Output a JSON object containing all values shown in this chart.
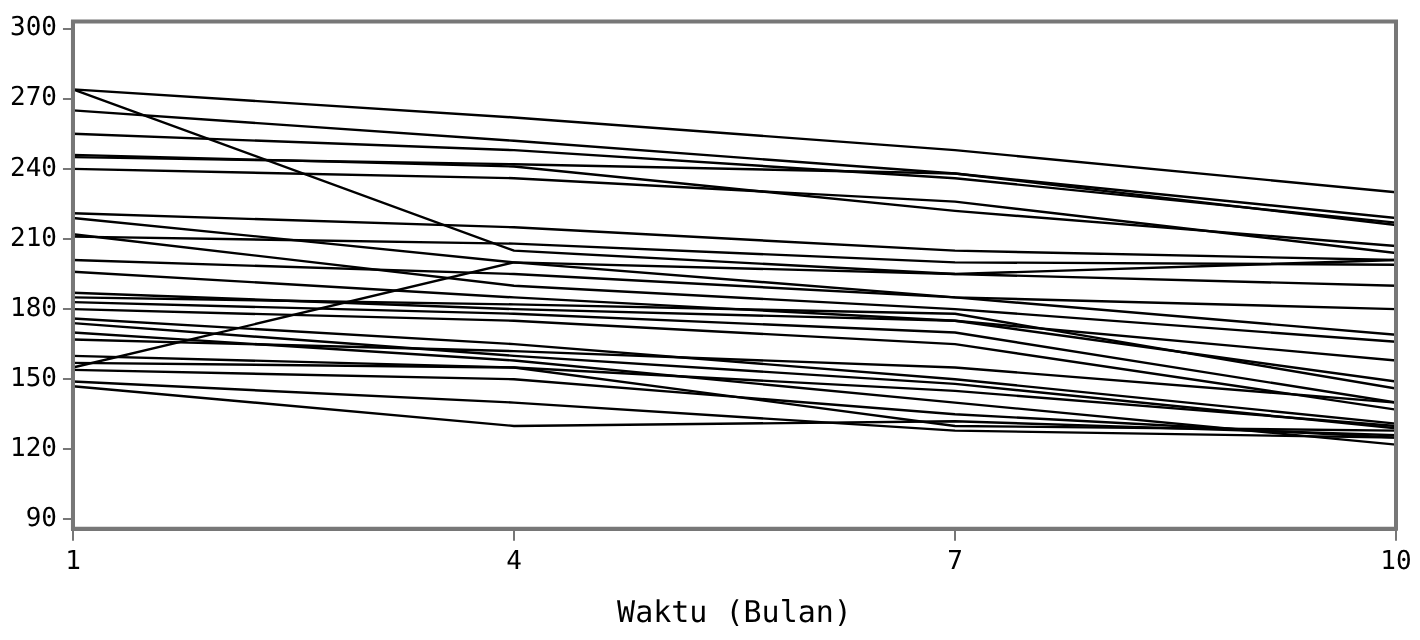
{
  "chart_data": {
    "type": "line",
    "xlabel": "Waktu (Bulan)",
    "x": [
      1,
      4,
      7,
      10
    ],
    "xlim": [
      1,
      10
    ],
    "xticks": [
      1,
      4,
      7,
      10
    ],
    "ylim": [
      86,
      303
    ],
    "yticks": [
      90,
      120,
      150,
      180,
      210,
      240,
      270,
      300
    ],
    "grid": false,
    "legend": false,
    "marker": "none",
    "line_style": "solid",
    "series": [
      {
        "color": "#000000",
        "values": [
          274,
          262,
          248,
          230
        ]
      },
      {
        "color": "#000000",
        "values": [
          265,
          252,
          238,
          219
        ]
      },
      {
        "color": "#000000",
        "values": [
          255,
          248,
          236,
          217
        ]
      },
      {
        "color": "#000000",
        "values": [
          246,
          241,
          222,
          207
        ]
      },
      {
        "color": "#000000",
        "values": [
          245,
          242,
          238,
          216
        ]
      },
      {
        "color": "#000000",
        "values": [
          240,
          236,
          226,
          204
        ]
      },
      {
        "color": "#000000",
        "values": [
          274,
          205,
          195,
          190
        ]
      },
      {
        "color": "#000000",
        "values": [
          221,
          215,
          205,
          201
        ]
      },
      {
        "color": "#000000",
        "values": [
          219,
          200,
          185,
          169
        ]
      },
      {
        "color": "#000000",
        "values": [
          212,
          190,
          180,
          166
        ]
      },
      {
        "color": "#000000",
        "values": [
          211,
          208,
          200,
          199
        ]
      },
      {
        "color": "#000000",
        "values": [
          201,
          195,
          185,
          180
        ]
      },
      {
        "color": "#000000",
        "values": [
          196,
          185,
          175,
          158
        ]
      },
      {
        "color": "#000000",
        "values": [
          187,
          180,
          175,
          149
        ]
      },
      {
        "color": "#000000",
        "values": [
          185,
          182,
          178,
          146
        ]
      },
      {
        "color": "#000000",
        "values": [
          183,
          178,
          170,
          140
        ]
      },
      {
        "color": "#000000",
        "values": [
          180,
          175,
          165,
          137
        ]
      },
      {
        "color": "#000000",
        "values": [
          176,
          165,
          150,
          131
        ]
      },
      {
        "color": "#000000",
        "values": [
          174,
          160,
          148,
          129
        ]
      },
      {
        "color": "#000000",
        "values": [
          170,
          158,
          140,
          122
        ]
      },
      {
        "color": "#000000",
        "values": [
          167,
          162,
          155,
          140
        ]
      },
      {
        "color": "#000000",
        "values": [
          160,
          155,
          145,
          130
        ]
      },
      {
        "color": "#000000",
        "values": [
          157,
          155,
          130,
          128
        ]
      },
      {
        "color": "#000000",
        "values": [
          155,
          200,
          195,
          201
        ]
      },
      {
        "color": "#000000",
        "values": [
          154,
          150,
          135,
          125
        ]
      },
      {
        "color": "#000000",
        "values": [
          149,
          140,
          128,
          125
        ]
      },
      {
        "color": "#000000",
        "values": [
          147,
          130,
          132,
          126
        ]
      }
    ]
  }
}
